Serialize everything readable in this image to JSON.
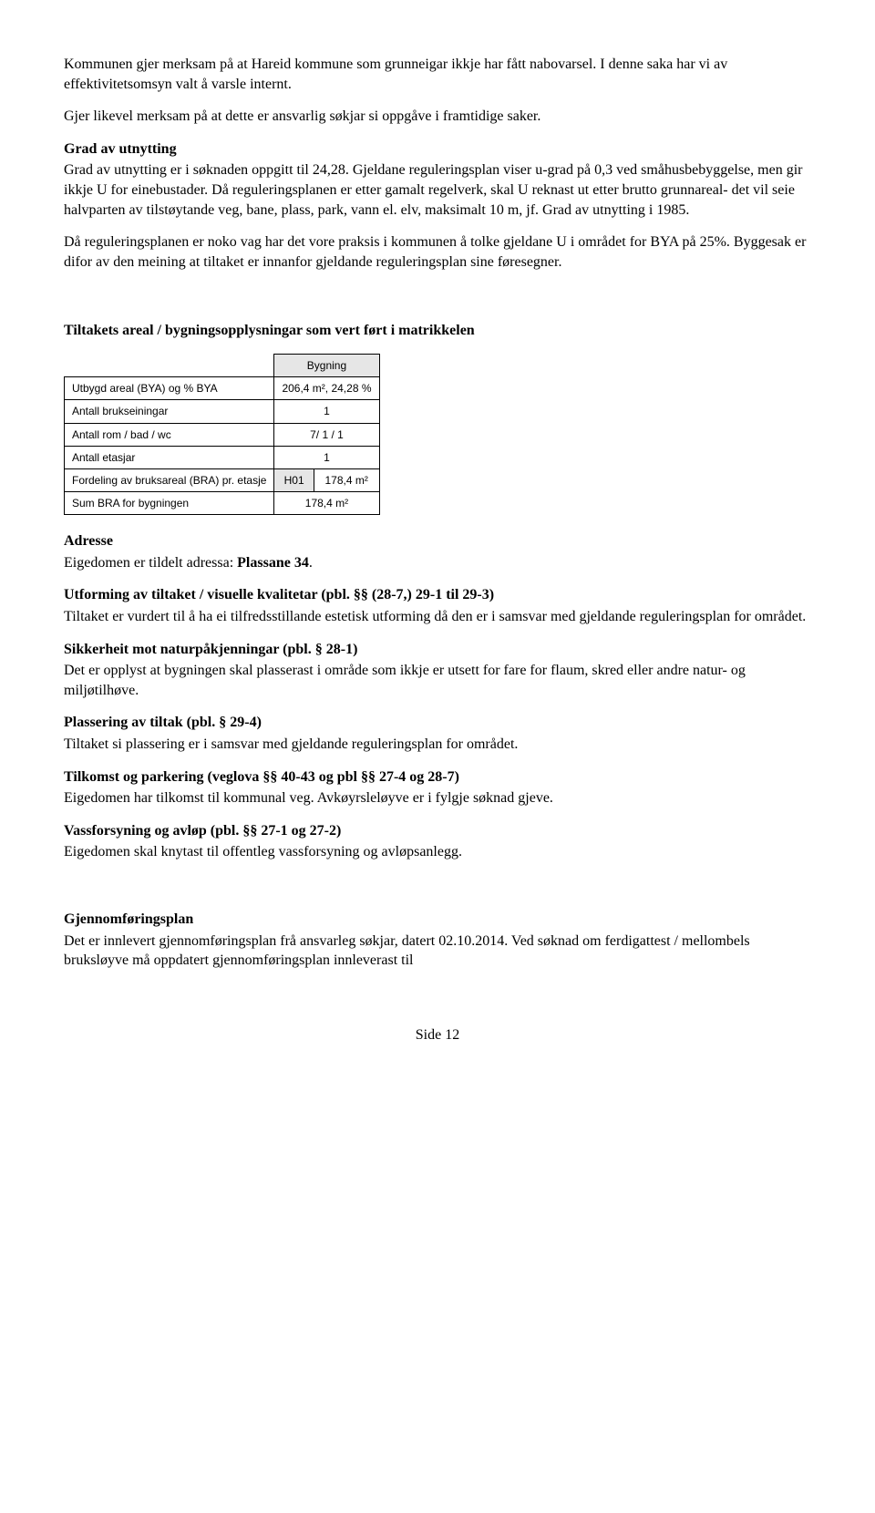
{
  "intro": {
    "p1": "Kommunen gjer merksam på at Hareid kommune som grunneigar ikkje har fått nabovarsel. I denne saka har vi av effektivitetsomsyn valt å varsle internt.",
    "p2": "Gjer likevel merksam på at dette er ansvarlig søkjar si oppgåve i framtidige saker."
  },
  "grad": {
    "title": "Grad av utnytting",
    "p1": "Grad av utnytting er i søknaden oppgitt til 24,28. Gjeldane reguleringsplan viser u-grad på 0,3 ved småhusbebyggelse, men gir ikkje U for einebustader. Då reguleringsplanen er etter gamalt regelverk, skal U reknast ut etter brutto grunnareal- det vil seie halvparten av tilstøytande veg, bane, plass, park, vann el. elv, maksimalt 10 m, jf. Grad av utnytting i 1985.",
    "p2": "Då reguleringsplanen er noko vag har det vore praksis i kommunen å tolke gjeldane U i området for BYA på 25%. Byggesak er difor av den meining at tiltaket er innanfor gjeldande reguleringsplan sine føresegner."
  },
  "table": {
    "title": "Tiltakets areal / bygningsopplysningar som vert ført i matrikkelen",
    "header_bygning": "Bygning",
    "rows": {
      "r1_label": "Utbygd areal (BYA) og % BYA",
      "r1_val": "206,4  m², 24,28 %",
      "r2_label": "Antall brukseiningar",
      "r2_val": "1",
      "r3_label": "Antall rom / bad / wc",
      "r3_val": "7/ 1 / 1",
      "r4_label": "Antall etasjar",
      "r4_val": "1",
      "r5_label": "Fordeling av bruksareal (BRA) pr. etasje",
      "r5_sub": "H01",
      "r5_val": "178,4 m²",
      "r6_label": "Sum BRA for bygningen",
      "r6_val": "178,4 m²"
    },
    "col_widths": {
      "c1": 230,
      "c2": 60,
      "c3": 150
    }
  },
  "adresse": {
    "title": "Adresse",
    "text_pre": "Eigedomen er tildelt adressa: ",
    "text_bold": "Plassane 34",
    "text_post": "."
  },
  "utforming": {
    "title": "Utforming av tiltaket / visuelle kvalitetar (pbl. §§ (28-7,) 29-1 til 29-3)",
    "text": "Tiltaket er vurdert til å ha ei tilfredsstillande estetisk utforming då den er i samsvar med gjeldande reguleringsplan for området."
  },
  "sikkerheit": {
    "title": "Sikkerheit mot naturpåkjenningar (pbl. § 28-1)",
    "text": "Det er opplyst at bygningen skal plasserast i område som ikkje er utsett for fare for flaum, skred eller andre natur- og miljøtilhøve."
  },
  "plassering": {
    "title": "Plassering av tiltak (pbl. § 29-4)",
    "text": "Tiltaket si plassering er i samsvar med gjeldande reguleringsplan for området."
  },
  "tilkomst": {
    "title": "Tilkomst og parkering (veglova §§ 40-43 og pbl §§ 27-4 og 28-7)",
    "text": "Eigedomen har tilkomst til kommunal veg. Avkøyrsleløyve er i fylgje søknad gjeve."
  },
  "vass": {
    "title": "Vassforsyning og avløp (pbl. §§ 27-1 og 27-2)",
    "text": "Eigedomen skal knytast til offentleg vassforsyning og avløpsanlegg."
  },
  "gjennom": {
    "title": "Gjennomføringsplan",
    "text": "Det er innlevert gjennomføringsplan frå ansvarleg søkjar, datert 02.10.2014. Ved søknad om ferdigattest / mellombels bruksløyve må oppdatert gjennomføringsplan innleverast til"
  },
  "footer": "Side 12"
}
